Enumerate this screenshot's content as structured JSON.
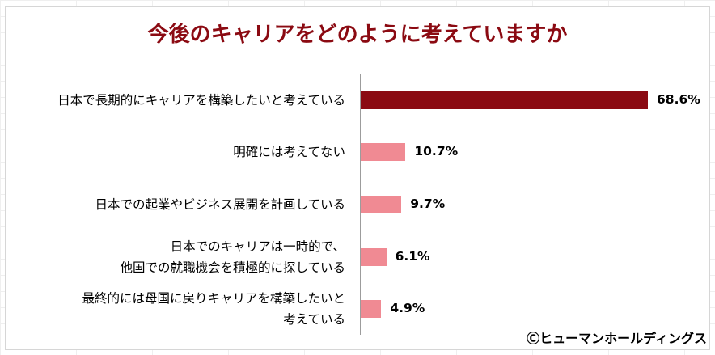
{
  "chart_data": {
    "type": "bar",
    "orientation": "horizontal",
    "title": "今後のキャリアをどのように考えていますか",
    "categories": [
      [
        "日本で長期的にキャリアを構築したいと考えている"
      ],
      [
        "明確には考えてない"
      ],
      [
        "日本での起業やビジネス展開を計画している"
      ],
      [
        "日本でのキャリアは一時的で、",
        "他国での就職機会を積極的に探している"
      ],
      [
        "最終的には母国に戻りキャリアを構築したいと",
        "考えている"
      ]
    ],
    "values": [
      68.6,
      10.7,
      9.7,
      6.1,
      4.9
    ],
    "value_labels": [
      "68.6%",
      "10.7%",
      "9.7%",
      "6.1%",
      "4.9%"
    ],
    "bar_colors": [
      "#8b0a12",
      "#f08a93",
      "#f08a93",
      "#f08a93",
      "#f08a93"
    ],
    "xlim": [
      0,
      100
    ],
    "grid": false,
    "legend": "none"
  },
  "credit": "Ⓒヒューマンホールディングス"
}
